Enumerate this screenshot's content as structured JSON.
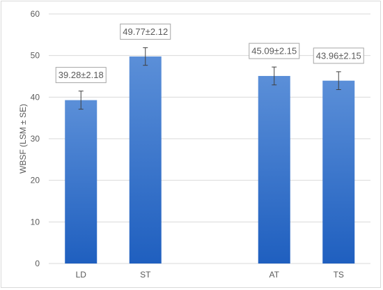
{
  "chart_data": {
    "type": "bar",
    "title": "",
    "xlabel": "",
    "ylabel": "WBSF (LSM ± SE)",
    "ylim": [
      0,
      60
    ],
    "yticks": [
      0,
      10,
      20,
      30,
      40,
      50,
      60
    ],
    "grid": true,
    "legend": "none",
    "categories": [
      "LD",
      "ST",
      "AT",
      "TS"
    ],
    "slots": [
      0,
      1,
      3,
      4
    ],
    "values": [
      39.28,
      49.77,
      45.09,
      43.96
    ],
    "errors": [
      2.18,
      2.12,
      2.15,
      2.15
    ],
    "data_labels": [
      "39.28±2.18",
      "49.77±2.12",
      "45.09±2.15",
      "43.96±2.15"
    ],
    "bar_color_top": "#5b8fd8",
    "bar_color_bottom": "#1f5fbf",
    "gridline_color": "#d9d9d9",
    "text_color": "#595959"
  }
}
